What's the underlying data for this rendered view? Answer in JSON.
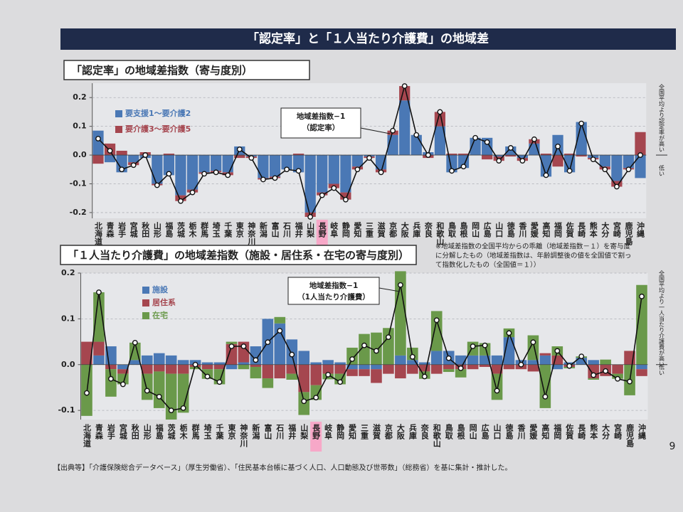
{
  "header": {
    "title": "「認定率」と「１人当たり介護費」の地域差"
  },
  "note": [
    "※地域差指数の全国平均からの乖離（地域差指数－１）を寄与度",
    "に分解したもの（地域差指数は、年齢調整後の値を全国値で割っ",
    "て指数化したもの（全国値＝１））"
  ],
  "footer": "【出典等】「介護保険総合データベース」（厚生労働省）、「住民基本台帳に基づく人口、人口動態及び世帯数」（総務省）を基に集計・推計した。",
  "page_number": "9",
  "chart_data": [
    {
      "type": "bar",
      "stacked": true,
      "title": "「認定率」の地域差指数（寄与度別）",
      "categories": [
        "北海道",
        "青森",
        "岩手",
        "宮城",
        "秋田",
        "山形",
        "福島",
        "茨城",
        "栃木",
        "群馬",
        "埼玉",
        "千葉",
        "東京",
        "神奈川",
        "新潟",
        "富山",
        "石川",
        "福井",
        "山梨",
        "長野",
        "岐阜",
        "静岡",
        "愛知",
        "三重",
        "滋賀",
        "京都",
        "大阪",
        "兵庫",
        "奈良",
        "和歌山",
        "鳥取",
        "島根",
        "岡山",
        "広島",
        "山口",
        "徳島",
        "香川",
        "愛媛",
        "高知",
        "福岡",
        "佐賀",
        "長崎",
        "熊本",
        "大分",
        "宮崎",
        "鹿児島",
        "沖縄"
      ],
      "highlight_category": "長野",
      "series": [
        {
          "name": "要支援1～要介護2",
          "color": "#4a78b5",
          "values": [
            0.085,
            -0.025,
            -0.06,
            -0.025,
            -0.01,
            -0.1,
            -0.07,
            -0.14,
            -0.12,
            -0.06,
            -0.055,
            -0.06,
            0.03,
            -0.005,
            -0.08,
            -0.075,
            -0.05,
            -0.06,
            -0.2,
            -0.13,
            -0.1,
            -0.13,
            -0.04,
            -0.005,
            -0.05,
            0.07,
            0.19,
            0.07,
            0.01,
            0.1,
            -0.06,
            -0.045,
            0.06,
            0.06,
            -0.005,
            0.03,
            -0.01,
            0.04,
            -0.075,
            0.07,
            -0.06,
            0.115,
            -0.01,
            -0.04,
            -0.09,
            -0.045,
            -0.08
          ]
        },
        {
          "name": "要介護3～要介護5",
          "color": "#a5464f",
          "values": [
            -0.03,
            0.04,
            0.015,
            -0.01,
            0.01,
            -0.005,
            0.005,
            -0.02,
            -0.01,
            -0.005,
            -0.005,
            -0.01,
            -0.01,
            -0.005,
            -0.005,
            -0.005,
            0,
            0.005,
            -0.015,
            -0.01,
            -0.015,
            -0.025,
            -0.01,
            -0.005,
            -0.01,
            0.015,
            0.05,
            0,
            -0.01,
            0.05,
            0.005,
            0.005,
            0,
            -0.015,
            -0.015,
            -0.005,
            -0.01,
            0.015,
            0.005,
            -0.04,
            0.005,
            -0.005,
            -0.005,
            -0.01,
            -0.02,
            -0.005,
            0.08
          ]
        }
      ],
      "line": {
        "label": [
          "地域差指数−1",
          "（認定率）"
        ],
        "values": [
          0.057,
          0.015,
          -0.05,
          -0.035,
          0,
          -0.105,
          -0.065,
          -0.16,
          -0.13,
          -0.065,
          -0.06,
          -0.07,
          0.02,
          -0.01,
          -0.085,
          -0.08,
          -0.05,
          -0.055,
          -0.215,
          -0.14,
          -0.115,
          -0.155,
          -0.05,
          -0.01,
          -0.06,
          0.085,
          0.24,
          0.07,
          0,
          0.15,
          -0.055,
          -0.04,
          0.06,
          0.045,
          -0.02,
          0.025,
          -0.02,
          0.055,
          -0.07,
          0.03,
          -0.055,
          0.11,
          -0.015,
          -0.05,
          -0.11,
          -0.05,
          0
        ]
      },
      "ylim": [
        -0.22,
        0.25
      ],
      "yticks": [
        0.2,
        0.1,
        {
          "value": 0,
          "label": "0.0"
        },
        -0.1,
        -0.2
      ],
      "grid": true,
      "side_high": "全国平均より認定率が高い",
      "side_low": "低い"
    },
    {
      "type": "bar",
      "stacked": true,
      "title": "「１人当たり介護費」の地域差指数（施設・居住系・在宅の寄与度別）",
      "categories": [
        "北海道",
        "青森",
        "岩手",
        "宮城",
        "秋田",
        "山形",
        "福島",
        "茨城",
        "栃木",
        "群馬",
        "埼玉",
        "千葉",
        "東京",
        "神奈川",
        "新潟",
        "富山",
        "石川",
        "福井",
        "山梨",
        "長野",
        "岐阜",
        "静岡",
        "愛知",
        "三重",
        "滋賀",
        "京都",
        "大阪",
        "兵庫",
        "奈良",
        "和歌山",
        "鳥取",
        "島根",
        "岡山",
        "広島",
        "山口",
        "徳島",
        "香川",
        "愛媛",
        "高知",
        "福岡",
        "佐賀",
        "長崎",
        "熊本",
        "大分",
        "宮崎",
        "鹿児島",
        "沖縄"
      ],
      "highlight_category": "長野",
      "series": [
        {
          "name": "施設",
          "color": "#4a78b5",
          "values": [
            0,
            0.02,
            0.04,
            -0.01,
            0.01,
            0.02,
            0.025,
            0.02,
            0.01,
            0.01,
            0.005,
            0.005,
            -0.01,
            0.005,
            0.04,
            0.1,
            0.09,
            0.055,
            0.03,
            0.005,
            0.01,
            0.005,
            -0.01,
            -0.01,
            -0.01,
            0,
            0.02,
            0.01,
            0.005,
            0.03,
            0.03,
            0.02,
            0.02,
            0.02,
            0.02,
            0.06,
            0.01,
            0.01,
            0.02,
            -0.01,
            0.005,
            0.015,
            0.01,
            0,
            0,
            0,
            -0.01
          ]
        },
        {
          "name": "居住系",
          "color": "#a5464f",
          "values": [
            0.05,
            0.03,
            -0.01,
            -0.01,
            0,
            -0.02,
            -0.015,
            -0.02,
            -0.02,
            -0.005,
            -0.01,
            -0.01,
            0.045,
            0.045,
            -0.005,
            -0.03,
            -0.03,
            -0.02,
            -0.06,
            -0.045,
            -0.02,
            -0.02,
            -0.015,
            -0.015,
            -0.03,
            -0.02,
            -0.03,
            -0.02,
            -0.015,
            -0.02,
            -0.01,
            -0.01,
            -0.01,
            -0.005,
            -0.02,
            -0.01,
            -0.01,
            -0.015,
            0.005,
            0.02,
            -0.005,
            0,
            -0.03,
            -0.025,
            -0.02,
            0.03,
            -0.015
          ]
        },
        {
          "name": "在宅",
          "color": "#6a994a",
          "values": [
            -0.112,
            0.108,
            -0.06,
            -0.023,
            0.038,
            -0.057,
            -0.08,
            -0.1,
            -0.085,
            -0.005,
            -0.021,
            -0.033,
            0.005,
            -0.01,
            -0.025,
            -0.021,
            0.014,
            -0.013,
            -0.05,
            -0.032,
            -0.012,
            -0.023,
            0.037,
            0.067,
            0.07,
            0.08,
            0.184,
            0.027,
            -0.016,
            0.087,
            -0.006,
            -0.018,
            0.03,
            0.027,
            -0.057,
            0.019,
            0,
            0.054,
            -0.095,
            0.02,
            -0.003,
            0.003,
            -0.003,
            0.011,
            -0.011,
            -0.067,
            0.174
          ]
        }
      ],
      "line": {
        "label": [
          "地域差指数−1",
          "（1人当たり介護費）"
        ],
        "values": [
          -0.062,
          0.158,
          -0.031,
          -0.043,
          0.048,
          -0.057,
          -0.07,
          -0.1,
          -0.095,
          0,
          -0.026,
          -0.038,
          0.04,
          0.04,
          0.01,
          0.049,
          0.074,
          0.022,
          -0.08,
          -0.072,
          -0.022,
          -0.038,
          0.012,
          0.042,
          0.03,
          0.06,
          0.174,
          0.017,
          -0.026,
          0.097,
          0.014,
          -0.008,
          0.04,
          0.042,
          -0.057,
          0.069,
          0,
          0.049,
          -0.07,
          0.03,
          -0.003,
          0.018,
          -0.023,
          -0.014,
          -0.031,
          -0.037,
          0.149
        ]
      },
      "ylim": [
        -0.12,
        0.2
      ],
      "yticks": [
        0.2,
        0.1,
        {
          "value": 0,
          "label": "0.0"
        },
        -0.1
      ],
      "grid": true,
      "side_high": "全国平均より一人当たり介護費が高い",
      "side_low": "低い"
    }
  ]
}
